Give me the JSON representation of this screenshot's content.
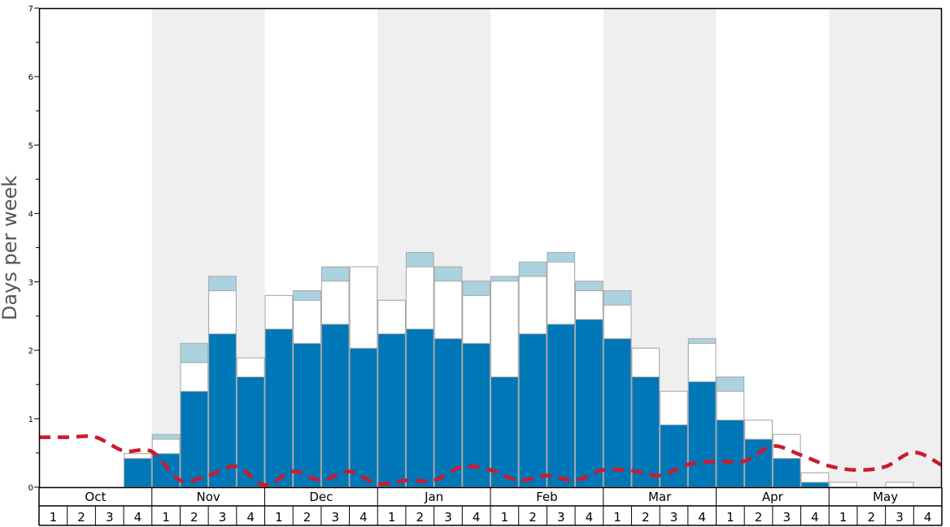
{
  "chart_data": {
    "type": "bar",
    "ylabel": "Days per week",
    "ylim": [
      0,
      7
    ],
    "yticks": [
      "0",
      "1",
      "2",
      "3",
      "4",
      "5",
      "6",
      "7"
    ],
    "months": [
      "Oct",
      "Nov",
      "Dec",
      "Jan",
      "Feb",
      "Mar",
      "Apr",
      "May"
    ],
    "weeks": [
      "1",
      "2",
      "3",
      "4"
    ],
    "series": [
      {
        "values": [
          0,
          0,
          0,
          0.42,
          0.49,
          1.4,
          2.24,
          1.61,
          2.31,
          2.1,
          2.38,
          2.03,
          2.24,
          2.31,
          2.17,
          2.1,
          1.61,
          2.24,
          2.38,
          2.45,
          2.17,
          1.61,
          0.91,
          1.54,
          0.98,
          0.7,
          0.42,
          0.07,
          0,
          0,
          0,
          0
        ]
      },
      {
        "values": [
          0,
          0,
          0,
          0.49,
          0.7,
          1.82,
          2.87,
          1.89,
          2.8,
          2.73,
          3.01,
          3.22,
          2.73,
          3.22,
          3.01,
          2.8,
          3.01,
          3.08,
          3.29,
          2.87,
          2.66,
          2.03,
          1.4,
          2.1,
          1.4,
          0.98,
          0.77,
          0.21,
          0.07,
          0,
          0.07,
          0
        ]
      },
      {
        "values": [
          0,
          0,
          0,
          0.49,
          0.77,
          2.1,
          3.08,
          1.89,
          2.8,
          2.87,
          3.22,
          3.22,
          2.73,
          3.43,
          3.22,
          3.01,
          3.08,
          3.29,
          3.43,
          3.01,
          2.87,
          2.03,
          1.4,
          2.17,
          1.61,
          0.98,
          0.77,
          0.21,
          0.07,
          0,
          0.07,
          0
        ]
      },
      {
        "values": [
          0.73,
          0.73,
          0.73,
          0.53,
          0.52,
          0.1,
          0.17,
          0.3,
          0.03,
          0.23,
          0.1,
          0.23,
          0.05,
          0.1,
          0.1,
          0.3,
          0.25,
          0.1,
          0.17,
          0.1,
          0.25,
          0.24,
          0.17,
          0.33,
          0.38,
          0.38,
          0.6,
          0.47,
          0.31,
          0.25,
          0.3,
          0.51,
          0.32
        ]
      }
    ],
    "colors": {
      "bar_main": "#0077b6",
      "bar_mid": "#ffffff",
      "bar_top": "#abd2df",
      "bar_stroke": "#a8a8a8",
      "line": "#cc1a2e",
      "band": "#efefef"
    },
    "grid": false,
    "legend": "none"
  }
}
